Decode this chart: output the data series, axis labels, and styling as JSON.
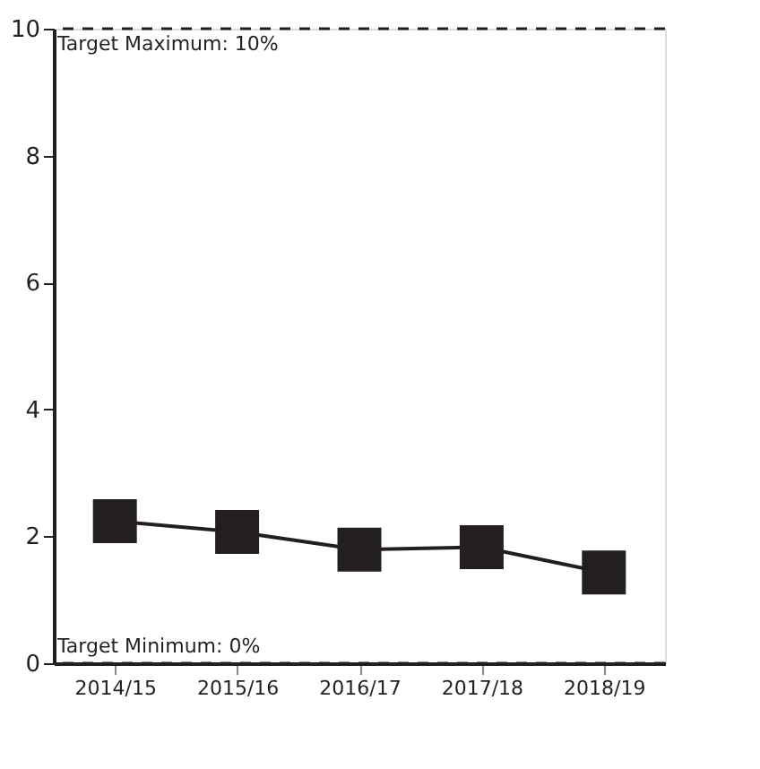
{
  "chart_data": {
    "type": "line",
    "categories": [
      "2014/15",
      "2015/16",
      "2016/17",
      "2017/18",
      "2018/19"
    ],
    "series": [
      {
        "color": "#231f20",
        "values": [
          2.24,
          2.07,
          1.79,
          1.83,
          1.43
        ]
      }
    ],
    "ylim": [
      0,
      10
    ],
    "yticks": [
      0,
      2,
      4,
      6,
      8,
      10
    ],
    "grid": false,
    "marker": "square",
    "line_style": "solid",
    "ref_lines": [
      {
        "axis": "y",
        "value": 10,
        "label": "Target Maximum: 10%",
        "line_style": "dashed",
        "color": "#231f20"
      },
      {
        "axis": "y",
        "value": 0,
        "label": "Target Minimum: 0%",
        "line_style": "dashed",
        "color": "#231f20"
      }
    ]
  }
}
